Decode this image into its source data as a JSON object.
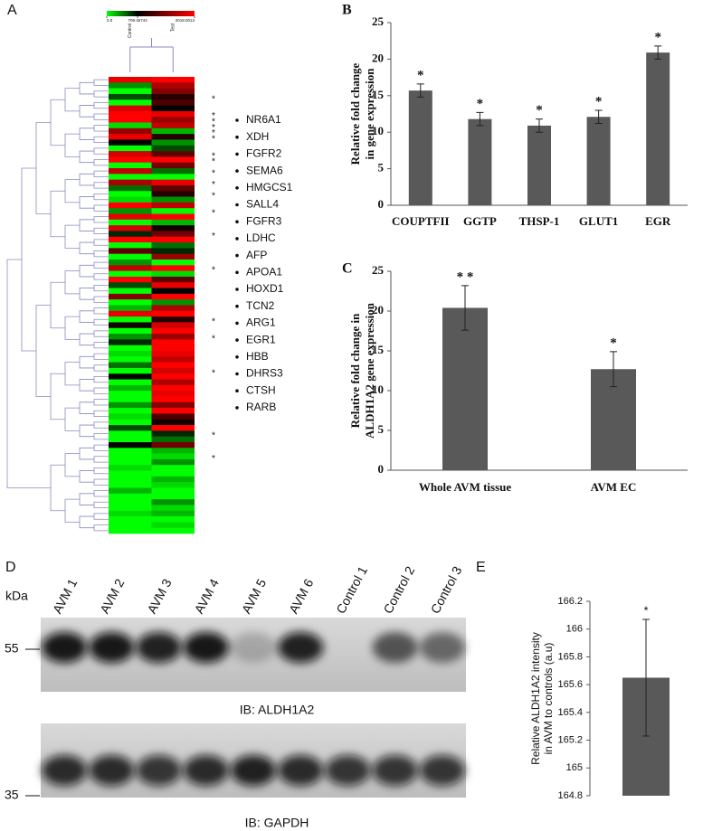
{
  "chart_data": [
    {
      "type": "heatmap",
      "panel": "A",
      "columns": [
        "Control",
        "Test"
      ],
      "zticks": [
        {
          "value": 0,
          "label": "0.0"
        },
        709.45744,
        2018.0013
      ],
      "colorscale": [
        "#00ff00",
        "#000000",
        "#ff0000"
      ],
      "rows": [
        [
          1900,
          2018
        ],
        [
          300,
          1600
        ],
        [
          0,
          1400
        ],
        [
          500,
          900
        ],
        [
          0,
          1100
        ],
        [
          1800,
          700
        ],
        [
          2018,
          1900
        ],
        [
          2018,
          1500
        ],
        [
          100,
          1700
        ],
        [
          1500,
          200
        ],
        [
          1900,
          900
        ],
        [
          700,
          300
        ],
        [
          0,
          500
        ],
        [
          1800,
          1200
        ],
        [
          2018,
          2018
        ],
        [
          0,
          1300
        ],
        [
          1700,
          400
        ],
        [
          0,
          0
        ],
        [
          1600,
          1900
        ],
        [
          400,
          1200
        ],
        [
          0,
          900
        ],
        [
          100,
          300
        ],
        [
          2018,
          1700
        ],
        [
          300,
          0
        ],
        [
          1900,
          2018
        ],
        [
          0,
          200
        ],
        [
          1800,
          800
        ],
        [
          600,
          1300
        ],
        [
          2018,
          2018
        ],
        [
          0,
          400
        ],
        [
          1200,
          600
        ],
        [
          0,
          1500
        ],
        [
          300,
          0
        ],
        [
          1700,
          2018
        ],
        [
          0,
          100
        ],
        [
          2018,
          1200
        ],
        [
          500,
          1900
        ],
        [
          0,
          700
        ],
        [
          1400,
          2018
        ],
        [
          0,
          300
        ],
        [
          200,
          1600
        ],
        [
          1900,
          2018
        ],
        [
          0,
          900
        ],
        [
          800,
          1800
        ],
        [
          0,
          2018
        ],
        [
          300,
          1500
        ],
        [
          600,
          2018
        ],
        [
          0,
          2018
        ],
        [
          100,
          1900
        ],
        [
          0,
          1700
        ],
        [
          400,
          2018
        ],
        [
          0,
          1800
        ],
        [
          700,
          2018
        ],
        [
          0,
          1600
        ],
        [
          200,
          2018
        ],
        [
          0,
          1900
        ],
        [
          0,
          2018
        ],
        [
          300,
          1400
        ],
        [
          0,
          2018
        ],
        [
          100,
          1100
        ],
        [
          0,
          800
        ],
        [
          500,
          2018
        ],
        [
          0,
          600
        ],
        [
          0,
          400
        ],
        [
          700,
          1300
        ],
        [
          0,
          200
        ],
        [
          0,
          100
        ],
        [
          0,
          300
        ],
        [
          100,
          0
        ],
        [
          0,
          0
        ],
        [
          0,
          200
        ],
        [
          0,
          100
        ],
        [
          200,
          0
        ],
        [
          0,
          0
        ],
        [
          0,
          300
        ],
        [
          0,
          100
        ],
        [
          100,
          200
        ],
        [
          0,
          0
        ],
        [
          0,
          100
        ],
        [
          0,
          0
        ]
      ],
      "star": "*",
      "star_rows": [
        3,
        6,
        7,
        8,
        9,
        10,
        13,
        14,
        16,
        18,
        20,
        23,
        27,
        33,
        42,
        45,
        51,
        62,
        66
      ],
      "genes": [
        "NR6A1",
        "XDH",
        "FGFR2",
        "SEMA6",
        "HMGCS1",
        "SALL4",
        "FGFR3",
        "LDHC",
        "AFP",
        "APOA1",
        "HOXD1",
        "TCN2",
        "ARG1",
        "EGR1",
        "HBB",
        "DHRS3",
        "CTSH",
        "RARB"
      ]
    },
    {
      "type": "bar",
      "panel": "B",
      "ylabel": "Relative fold change in gene expression",
      "categories": [
        "COUPTFII",
        "GGTP",
        "THSP-1",
        "GLUT1",
        "EGR"
      ],
      "values": [
        15.7,
        11.8,
        10.9,
        12.1,
        20.9
      ],
      "errors": [
        0.9,
        0.9,
        0.9,
        0.9,
        0.9
      ],
      "annotations": [
        "*",
        "*",
        "*",
        "*",
        "*"
      ],
      "color": "#595959",
      "ylim": [
        0,
        25
      ],
      "yticks": [
        0,
        5,
        10,
        15,
        20,
        25
      ]
    },
    {
      "type": "bar",
      "panel": "C",
      "ylabel": "Relative fold change in ALDH1A2 gene expression",
      "categories": [
        "Whole AVM tissue",
        "AVM EC"
      ],
      "values": [
        20.4,
        12.7
      ],
      "errors": [
        2.8,
        2.2
      ],
      "annotations": [
        "* *",
        "*"
      ],
      "color": "#595959",
      "ylim": [
        0,
        25
      ],
      "yticks": [
        0,
        5,
        10,
        15,
        20,
        25
      ]
    },
    {
      "type": "blot",
      "panel": "D",
      "lanes": [
        "AVM 1",
        "AVM 2",
        "AVM 3",
        "AVM 4",
        "AVM 5",
        "AVM 6",
        "Control 1",
        "Control 2",
        "Control 3"
      ],
      "unit": "kDa",
      "blots": [
        {
          "caption": "IB: ALDH1A2",
          "marker": 55,
          "intensities": [
            0.95,
            0.95,
            0.9,
            0.95,
            0.2,
            0.9,
            0,
            0.6,
            0.5
          ]
        },
        {
          "caption": "IB: GAPDH",
          "marker": 35,
          "intensities": [
            0.85,
            0.85,
            0.8,
            0.85,
            0.9,
            0.85,
            0.8,
            0.8,
            0.8
          ]
        }
      ]
    },
    {
      "type": "bar",
      "panel": "E",
      "ylabel": "Relative ALDH1A2 intensity in AVM to controls (a.u)",
      "values": [
        165.65
      ],
      "errors": [
        0.42
      ],
      "annotations": [
        "*"
      ],
      "color": "#595959",
      "ylim": [
        164.8,
        166.2
      ],
      "yticks": [
        164.8,
        165,
        165.2,
        165.4,
        165.6,
        165.8,
        166,
        166.2
      ]
    }
  ]
}
